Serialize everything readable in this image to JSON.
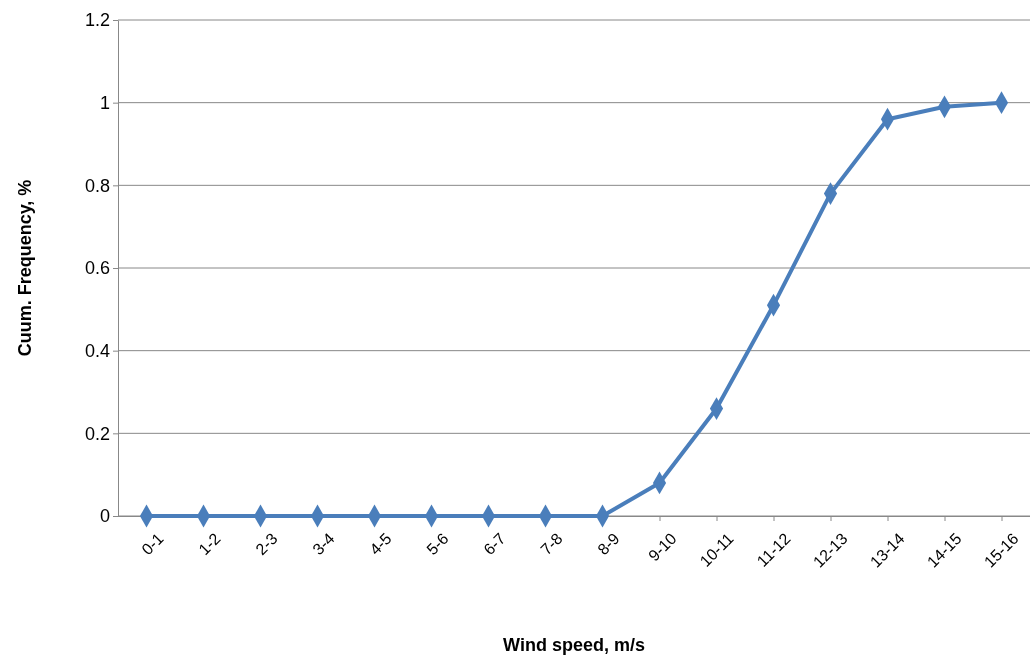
{
  "chart_data": {
    "type": "line",
    "xlabel": "Wind speed, m/s",
    "ylabel": "Cuum. Frequency, %",
    "categories": [
      "0-1",
      "1-2",
      "2-3",
      "3-4",
      "4-5",
      "5-6",
      "6-7",
      "7-8",
      "8-9",
      "9-10",
      "10-11",
      "11-12",
      "12-13",
      "13-14",
      "14-15",
      "15-16"
    ],
    "series": [
      {
        "color": "#4a7ebb",
        "values": [
          0,
          0,
          0,
          0,
          0,
          0,
          0,
          0,
          0,
          0.08,
          0.26,
          0.51,
          0.78,
          0.96,
          0.99,
          1
        ]
      }
    ],
    "ylim": [
      0,
      1.2
    ],
    "yticks": [
      0,
      0.2,
      0.4,
      0.6,
      0.8,
      {
        "value": 1,
        "label": "1"
      },
      1.2
    ],
    "grid": "y",
    "marker": "diamond",
    "line_style": "solid"
  }
}
